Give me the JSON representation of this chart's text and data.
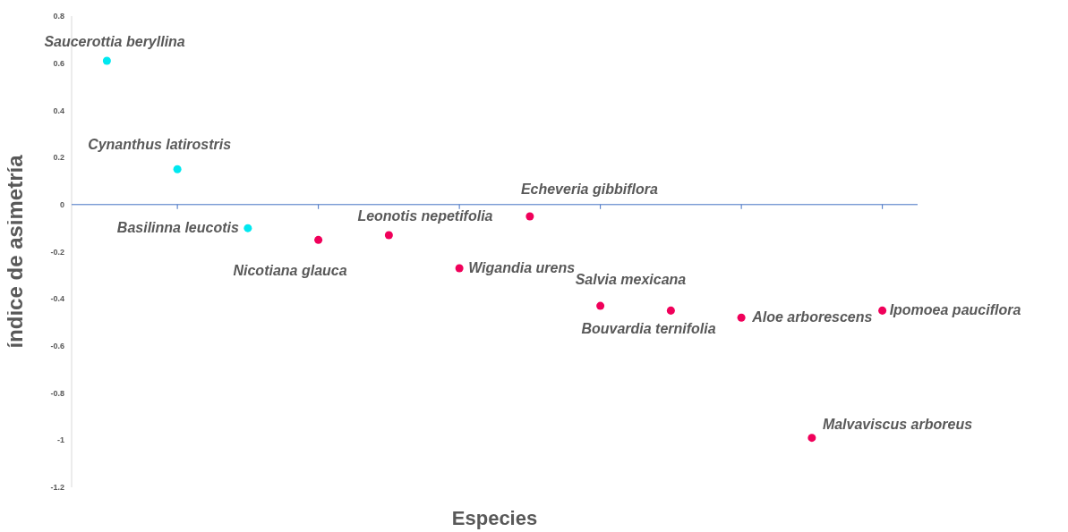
{
  "chart_data": {
    "type": "scatter",
    "xlabel": "Especies",
    "ylabel": "índice de asimetría",
    "categories": [
      null,
      null,
      null,
      null,
      null,
      null,
      null,
      null,
      null,
      null,
      null,
      null
    ],
    "ylim": [
      -1.2,
      0.8
    ],
    "yticks": [
      -1.2,
      -1,
      -0.8,
      -0.6,
      -0.4,
      -0.2,
      0,
      0.2,
      0.4,
      0.6,
      0.8
    ],
    "tick_labels": "y",
    "marker": "circle",
    "ref_lines": [
      {
        "axis": "y",
        "value": 0,
        "color": "#4472c4"
      }
    ],
    "values": [
      0.61,
      0.15,
      -0.1,
      -0.15,
      -0.13,
      -0.27,
      -0.05,
      -0.43,
      -0.45,
      -0.48,
      -0.99,
      -0.45
    ],
    "colors": [
      "#00e8f0",
      "#00e8f0",
      "#00e8f0",
      "#f0005a",
      "#f0005a",
      "#f0005a",
      "#f0005a",
      "#f0005a",
      "#f0005a",
      "#f0005a",
      "#f0005a",
      "#f0005a"
    ],
    "annotations": [
      "Saucerottia beryllina",
      "Cynanthus latirostris",
      "Basilinna leucotis",
      "Nicotiana glauca",
      "Leonotis nepetifolia",
      "Wigandia urens",
      "Echeveria gibbiflora",
      "Salvia mexicana",
      "Bouvardia ternifolia",
      "Aloe arborescens",
      "Malvaviscus arboreus",
      "Ipomoea pauciflora"
    ]
  }
}
